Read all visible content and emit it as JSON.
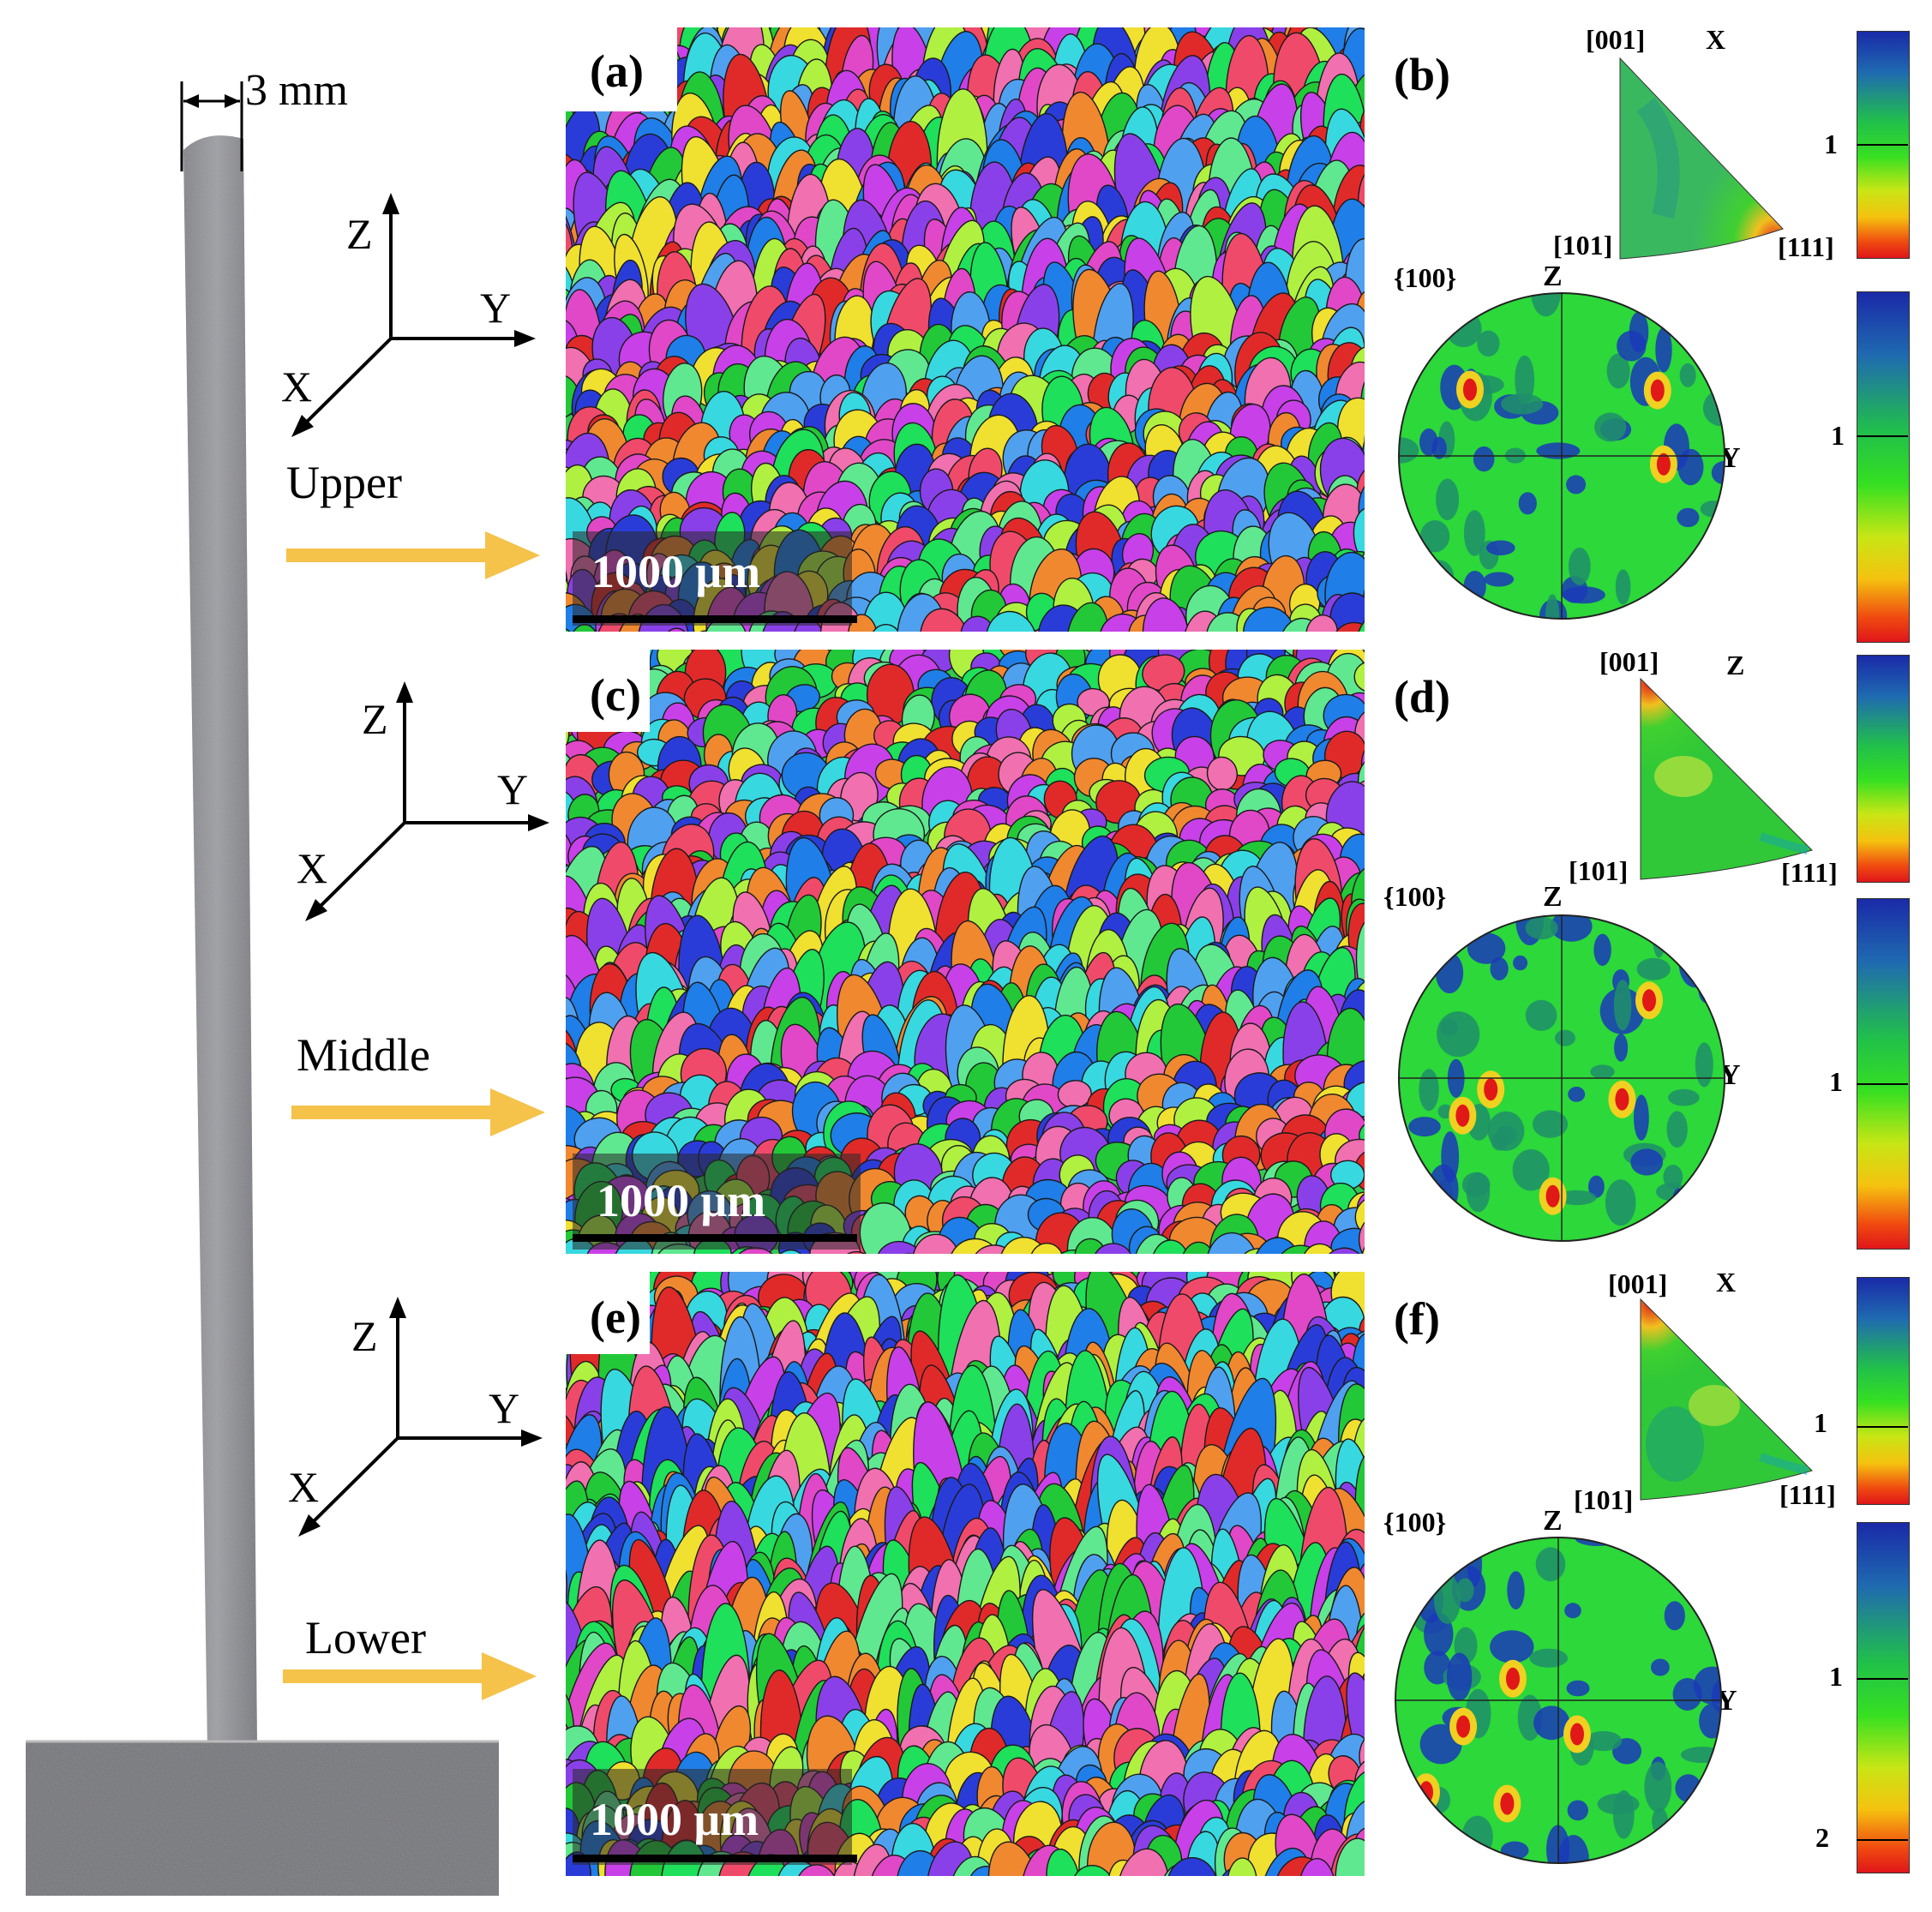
{
  "sample": {
    "width_label": "3 mm",
    "positions": [
      "Upper",
      "Middle",
      "Lower"
    ]
  },
  "axes": {
    "x": "X",
    "y": "Y",
    "z": "Z"
  },
  "panels": {
    "a": {
      "label": "(a)",
      "scale_label": "1000 μm"
    },
    "b": {
      "label": "(b)",
      "ipf_direction": "X",
      "ipf_corner_001": "[001]",
      "ipf_corner_101": "[101]",
      "ipf_corner_111": "[111]",
      "pf_family": "{100}",
      "pf_top": "Z",
      "pf_right": "Y",
      "ipf_cbar_tick": "1",
      "pf_cbar_tick": "1"
    },
    "c": {
      "label": "(c)",
      "scale_label": "1000 μm"
    },
    "d": {
      "label": "(d)",
      "ipf_direction": "Z",
      "ipf_corner_001": "[001]",
      "ipf_corner_101": "[101]",
      "ipf_corner_111": "[111]",
      "pf_family": "{100}",
      "pf_top": "Z",
      "pf_right": "Y",
      "pf_cbar_tick": "1"
    },
    "e": {
      "label": "(e)",
      "scale_label": "1000 μm"
    },
    "f": {
      "label": "(f)",
      "ipf_direction": "X",
      "ipf_corner_001": "[001]",
      "ipf_corner_101": "[101]",
      "ipf_corner_111": "[111]",
      "pf_family": "{100}",
      "pf_top": "Z",
      "pf_right": "Y",
      "ipf_cbar_tick": "1",
      "pf_cbar_tick_1": "1",
      "pf_cbar_tick_2": "2"
    }
  },
  "colors": {
    "arrow": "#f5c24a",
    "grain_palette": [
      "#22c838",
      "#1ee05a",
      "#2a3cd8",
      "#1f7ee8",
      "#e02a2a",
      "#f04a6a",
      "#e048c8",
      "#c840e8",
      "#8a40e8",
      "#38d8e0",
      "#f0e030",
      "#f08830",
      "#60e890",
      "#b0f040",
      "#f070b0",
      "#50a0f0"
    ]
  }
}
